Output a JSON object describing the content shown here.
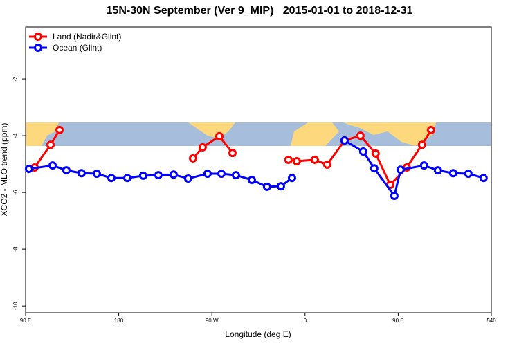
{
  "chart_data": {
    "type": "line",
    "title": "15N-30N September (Ver 9_MIP)   2015-01-01 to 2018-12-31",
    "x_label": "Longitude (deg E)",
    "y_label": "XCO2 - MLO trend (ppm)",
    "xlim": [
      90,
      540
    ],
    "ylim": [
      -10.24,
      -0.17
    ],
    "xticks": [
      {
        "value": 90,
        "label": "90 E"
      },
      180,
      {
        "value": 270,
        "label": "90 W"
      },
      {
        "value": 360,
        "label": "0"
      },
      {
        "value": 450,
        "label": "90 E"
      },
      540
    ],
    "yticks": [
      -2,
      -4,
      -6,
      -8,
      -10
    ],
    "legend": "top-left",
    "series": [
      {
        "name": "Land (Nadir&Glint)",
        "color": "#ff0000",
        "x": [
          98.7,
          114.1,
          122.8,
          null,
          251.8,
          261.1,
          277.2,
          289.9,
          null,
          344.0,
          352.0,
          369.4,
          381.4,
          398.2,
          413.5,
          428.2,
          442.3,
          458.3,
          473.0,
          481.7
        ],
        "values": [
          -5.12,
          -4.32,
          -3.8,
          null,
          -4.8,
          -4.41,
          -4.02,
          -4.61,
          null,
          -4.85,
          -4.9,
          -4.85,
          -5.02,
          -4.17,
          -4.0,
          -4.63,
          -5.73,
          -5.12,
          -4.32,
          -3.8
        ]
      },
      {
        "name": "Ocean (Glint)",
        "color": "#0000ff",
        "x": [
          93.3,
          116.1,
          129.4,
          144.1,
          158.8,
          172.9,
          188.3,
          203.6,
          218.3,
          233.0,
          247.1,
          265.8,
          279.2,
          293.2,
          308.6,
          323.3,
          336.7,
          347.4,
          null,
          398.2,
          416.2,
          426.9,
          446.3,
          452.3,
          475.0,
          488.4,
          503.1,
          517.8,
          532.5
        ],
        "values": [
          -5.17,
          -5.05,
          -5.22,
          -5.32,
          -5.34,
          -5.49,
          -5.49,
          -5.41,
          -5.39,
          -5.37,
          -5.51,
          -5.34,
          -5.34,
          -5.39,
          -5.56,
          -5.8,
          -5.78,
          -5.49,
          null,
          -4.17,
          -4.56,
          -5.15,
          -6.12,
          -5.2,
          -5.05,
          -5.22,
          -5.32,
          -5.34,
          -5.49
        ]
      }
    ]
  }
}
